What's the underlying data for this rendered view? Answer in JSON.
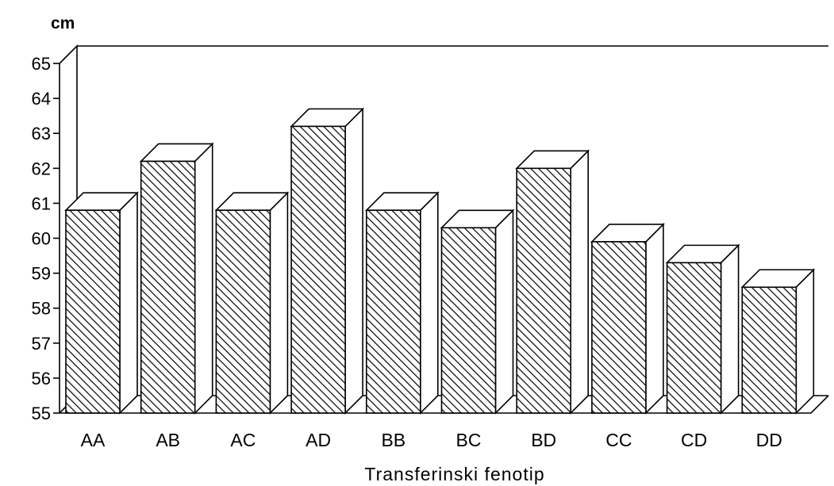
{
  "chart_data": {
    "type": "bar",
    "unit_label": "cm",
    "xlabel": "Transferinski fenotip",
    "ylabel": "",
    "categories": [
      "AA",
      "AB",
      "AC",
      "AD",
      "BB",
      "BC",
      "BD",
      "CC",
      "CD",
      "DD"
    ],
    "values": [
      60.8,
      62.2,
      60.8,
      63.2,
      60.8,
      60.3,
      62.0,
      59.9,
      59.3,
      58.6
    ],
    "ylim": [
      55,
      65
    ],
    "yticks": [
      "55",
      "56",
      "57",
      "58",
      "59",
      "60",
      "61",
      "62",
      "63",
      "64",
      "65"
    ],
    "grid": false,
    "style": "3d-hatched"
  }
}
